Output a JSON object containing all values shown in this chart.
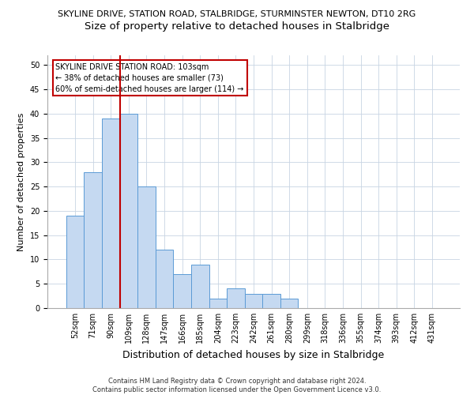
{
  "title": "SKYLINE DRIVE, STATION ROAD, STALBRIDGE, STURMINSTER NEWTON, DT10 2RG",
  "subtitle": "Size of property relative to detached houses in Stalbridge",
  "xlabel": "Distribution of detached houses by size in Stalbridge",
  "ylabel": "Number of detached properties",
  "categories": [
    "52sqm",
    "71sqm",
    "90sqm",
    "109sqm",
    "128sqm",
    "147sqm",
    "166sqm",
    "185sqm",
    "204sqm",
    "223sqm",
    "242sqm",
    "261sqm",
    "280sqm",
    "299sqm",
    "318sqm",
    "336sqm",
    "355sqm",
    "374sqm",
    "393sqm",
    "412sqm",
    "431sqm"
  ],
  "values": [
    19,
    28,
    39,
    40,
    25,
    12,
    7,
    9,
    2,
    4,
    3,
    3,
    2,
    0,
    0,
    0,
    0,
    0,
    0,
    0,
    0
  ],
  "bar_color": "#c5d9f1",
  "bar_edge_color": "#5b9bd5",
  "vline_x_index": 3,
  "vline_color": "#c00000",
  "annotation_text": "SKYLINE DRIVE STATION ROAD: 103sqm\n← 38% of detached houses are smaller (73)\n60% of semi-detached houses are larger (114) →",
  "annotation_box_color": "#ffffff",
  "annotation_box_edge": "#c00000",
  "ylim": [
    0,
    52
  ],
  "yticks": [
    0,
    5,
    10,
    15,
    20,
    25,
    30,
    35,
    40,
    45,
    50
  ],
  "footer": "Contains HM Land Registry data © Crown copyright and database right 2024.\nContains public sector information licensed under the Open Government Licence v3.0.",
  "title_fontsize": 8.0,
  "subtitle_fontsize": 9.5,
  "xlabel_fontsize": 9.0,
  "ylabel_fontsize": 8.0,
  "tick_fontsize": 7.0,
  "annotation_fontsize": 7.0,
  "footer_fontsize": 6.0
}
